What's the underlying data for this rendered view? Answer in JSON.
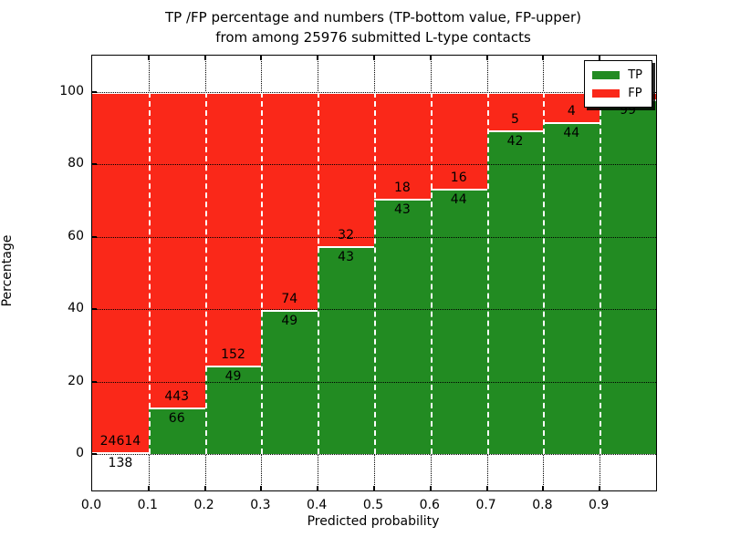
{
  "title": {
    "line1": "TP /FP percentage and numbers (TP-bottom value, FP-upper)",
    "line2": "from among 25976 submitted L-type contacts"
  },
  "axes": {
    "xlabel": "Predicted probability",
    "ylabel": "Percentage",
    "ytick_labels": [
      "0",
      "20",
      "40",
      "60",
      "80",
      "100"
    ],
    "ytick_values": [
      0,
      20,
      40,
      60,
      80,
      100
    ],
    "xtick_labels": [
      "0.0",
      "0.1",
      "0.2",
      "0.3",
      "0.4",
      "0.5",
      "0.6",
      "0.7",
      "0.8",
      "0.9"
    ],
    "xtick_values": [
      0.0,
      0.1,
      0.2,
      0.3,
      0.4,
      0.5,
      0.6,
      0.7,
      0.8,
      0.9
    ]
  },
  "legend": {
    "position": "upper right",
    "items": [
      {
        "label": "TP",
        "color": "#228b22"
      },
      {
        "label": "FP",
        "color": "#fa2819"
      }
    ]
  },
  "chart_data": {
    "type": "bar",
    "stacked": true,
    "normalized_to": 100,
    "title": "TP /FP percentage and numbers (TP-bottom value, FP-upper) from among 25976 submitted L-type contacts",
    "total_submitted": 25976,
    "contact_type": "L-type",
    "xlabel": "Predicted probability",
    "ylabel": "Percentage",
    "xlim": [
      0.0,
      1.0
    ],
    "ylim": [
      -10,
      110
    ],
    "grid": true,
    "bin_width": 0.1,
    "bin_left_edges": [
      0.0,
      0.1,
      0.2,
      0.3,
      0.4,
      0.5,
      0.6,
      0.7,
      0.8,
      0.9
    ],
    "series": [
      {
        "name": "TP",
        "color": "#228b22",
        "counts": [
          138,
          66,
          49,
          49,
          43,
          43,
          44,
          42,
          44,
          99
        ],
        "percent": [
          0.56,
          12.97,
          24.38,
          39.84,
          57.33,
          70.49,
          73.33,
          89.36,
          91.67,
          98.0
        ]
      },
      {
        "name": "FP",
        "color": "#fa2819",
        "counts": [
          24614,
          443,
          152,
          74,
          32,
          18,
          16,
          5,
          4,
          null
        ],
        "percent": [
          99.44,
          87.03,
          75.62,
          60.16,
          42.67,
          29.51,
          26.67,
          10.64,
          8.33,
          2.0
        ]
      }
    ],
    "note": "FP count label of last bin is hidden behind the legend"
  }
}
